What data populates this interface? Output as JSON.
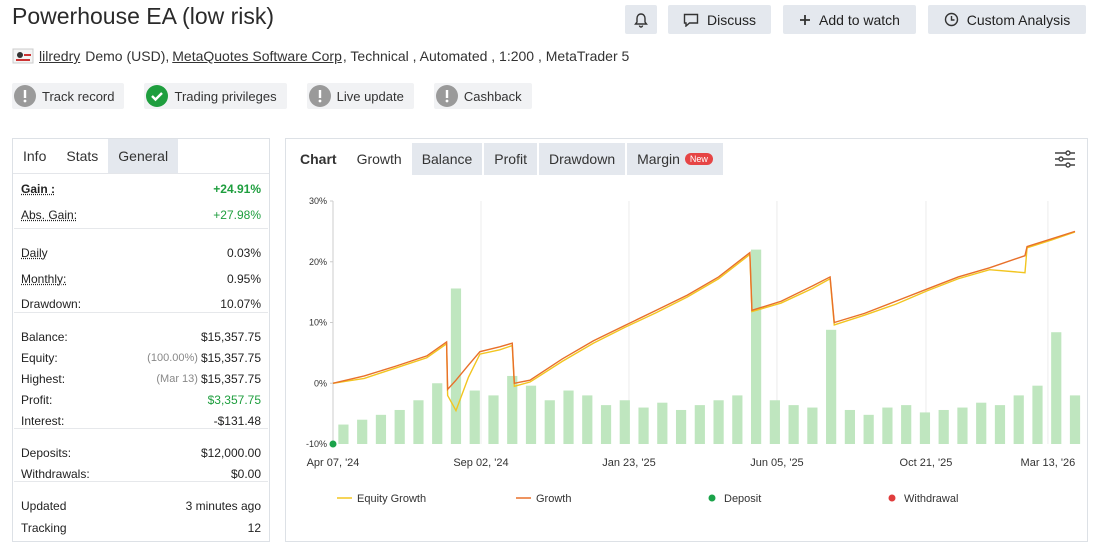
{
  "header": {
    "title": "Powerhouse EA (low risk)",
    "buttons": [
      "Discuss",
      "Add to watch",
      "Custom Analysis"
    ]
  },
  "meta": {
    "user": "lilredry",
    "account": "Demo (USD),",
    "broker": "MetaQuotes Software Corp",
    "details": ", Technical , Automated , 1:200 , MetaTrader 5"
  },
  "badges": [
    {
      "label": "Track record",
      "ok": false
    },
    {
      "label": "Trading privileges",
      "ok": true
    },
    {
      "label": "Live update",
      "ok": false
    },
    {
      "label": "Cashback",
      "ok": false
    }
  ],
  "left_panel": {
    "tabs": [
      "Info",
      "Stats",
      "General"
    ],
    "active_tab": 1,
    "groups": [
      [
        {
          "label": "Gain :",
          "value": "+24.91%",
          "color": "#1e9e3e",
          "hint": true,
          "bold": true
        },
        {
          "label": "Abs. Gain:",
          "value": "+27.98%",
          "color": "#1e9e3e",
          "hint": true
        }
      ],
      [
        {
          "label": "Daily",
          "value": "0.03%",
          "hint": true
        },
        {
          "label": "Monthly:",
          "value": "0.95%",
          "hint": true
        },
        {
          "label": "Drawdown:",
          "value": "10.07%"
        }
      ],
      [
        {
          "label": "Balance:",
          "value": "$15,357.75"
        },
        {
          "label": "Equity:",
          "note": "(100.00%)",
          "value": "$15,357.75"
        },
        {
          "label": "Highest:",
          "note": "(Mar 13)",
          "value": "$15,357.75"
        },
        {
          "label": "Profit:",
          "value": "$3,357.75",
          "color": "#1e9e3e"
        },
        {
          "label": "Interest:",
          "value": "-$131.48"
        }
      ],
      [
        {
          "label": "Deposits:",
          "value": "$12,000.00"
        },
        {
          "label": "Withdrawals:",
          "value": "$0.00"
        }
      ],
      [
        {
          "label": "Updated",
          "value": "3 minutes ago"
        },
        {
          "label": "Tracking",
          "value": "12"
        }
      ]
    ]
  },
  "chart_tabs": {
    "tabs": [
      "Chart",
      "Growth",
      "Balance",
      "Profit",
      "Drawdown",
      "Margin"
    ],
    "active_tab": 1,
    "new_badge": "New"
  },
  "chart_data": {
    "type": "line",
    "x": [
      0,
      30,
      60,
      90,
      109,
      110,
      118,
      130,
      141,
      160,
      172,
      174,
      189,
      220,
      250,
      280,
      310,
      340,
      370,
      400,
      402,
      430,
      460,
      477,
      481,
      510,
      540,
      570,
      600,
      630,
      664,
      666,
      690,
      712
    ],
    "xlim": [
      0,
      712
    ],
    "xticks": [
      {
        "value": 0,
        "label": "Apr 07, '24"
      },
      {
        "value": 142,
        "label": "Sep 02, '24"
      },
      {
        "value": 284,
        "label": "Jan 23, '25"
      },
      {
        "value": 426,
        "label": "Jun 05, '25"
      },
      {
        "value": 569,
        "label": "Oct 21, '25"
      },
      {
        "value": 686,
        "label": "Mar 13, '26"
      }
    ],
    "ylim": [
      -10,
      30
    ],
    "yticks": [
      {
        "value": 30,
        "label": "30%"
      },
      {
        "value": 20,
        "label": "20%"
      },
      {
        "value": 10,
        "label": "10%"
      },
      {
        "value": 0,
        "label": "0%"
      },
      {
        "value": -10,
        "label": "-10%"
      }
    ],
    "y2lim": [
      0,
      100
    ],
    "grid": "x",
    "series": [
      {
        "name": "Equity Growth",
        "color": "#f2c520",
        "kind": "line",
        "values": [
          0,
          0.8,
          2.5,
          4.2,
          6.5,
          -2,
          -4.5,
          1,
          4.8,
          5.5,
          6.2,
          -0.5,
          0.2,
          3.6,
          6.6,
          9.2,
          11.6,
          14.2,
          17.2,
          21.2,
          11.8,
          13.2,
          15.6,
          17.2,
          9.6,
          11.2,
          13,
          15.2,
          17.2,
          18.7,
          18.2,
          22.3,
          23.6,
          24.9
        ]
      },
      {
        "name": "Growth",
        "color": "#e8702a",
        "kind": "line",
        "values": [
          0,
          1.2,
          2.8,
          4.5,
          6.8,
          -1,
          0.5,
          3,
          5.2,
          6,
          6.6,
          0,
          0.5,
          4,
          7,
          9.5,
          12,
          14.5,
          17.5,
          21.5,
          12,
          13.5,
          16,
          17.5,
          10,
          11.5,
          13.5,
          15.5,
          17.5,
          19,
          21,
          22.5,
          23.8,
          25
        ]
      },
      {
        "name": "Deposit",
        "color": "#1aa34a",
        "kind": "dot",
        "x": [
          0
        ],
        "values": [
          -10
        ]
      },
      {
        "name": "Withdrawal",
        "color": "#e03c3c",
        "kind": "dot",
        "x": [],
        "values": []
      }
    ],
    "bars": {
      "axis": "y2",
      "color": "#bfe6bf",
      "x": [
        10,
        28,
        46,
        64,
        82,
        100,
        118,
        136,
        154,
        172,
        190,
        208,
        226,
        244,
        262,
        280,
        298,
        316,
        334,
        352,
        370,
        388,
        406,
        424,
        442,
        460,
        478,
        496,
        514,
        532,
        550,
        568,
        586,
        604,
        622,
        640,
        658,
        676,
        694,
        712
      ],
      "values": [
        8,
        10,
        12,
        14,
        18,
        25,
        64,
        22,
        20,
        28,
        24,
        18,
        22,
        20,
        16,
        18,
        15,
        17,
        14,
        16,
        18,
        20,
        80,
        18,
        16,
        15,
        47,
        14,
        12,
        15,
        16,
        13,
        14,
        15,
        17,
        16,
        20,
        24,
        46,
        20
      ]
    }
  }
}
